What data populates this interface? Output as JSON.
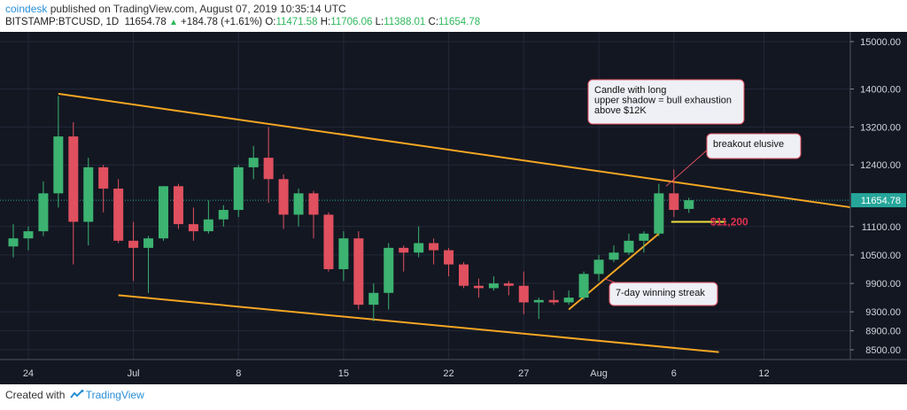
{
  "header": {
    "brand": "coindesk",
    "published": "published on TradingView.com, August 07, 2019 10:35:14 UTC",
    "symbol": "BITSTAMP:BTCUSD, 1D",
    "last": "11654.78",
    "change": "+184.78 (+1.61%)",
    "o_label": "O:",
    "o_value": "11471.58",
    "h_label": "H:",
    "h_value": "11706.06",
    "l_label": "L:",
    "l_value": "11388.01",
    "c_label": "C:",
    "c_value": "11654.78"
  },
  "footer": {
    "created_with": "Created with",
    "tradingview": "TradingView"
  },
  "colors": {
    "background": "#131722",
    "up": "#3cb371",
    "down": "#e0505e",
    "trendline": "#f5a623",
    "yellow_level": "#f0e040",
    "price_tag": "#26a69a"
  },
  "chart_data": {
    "type": "candlestick",
    "title": "BITSTAMP:BTCUSD, 1D",
    "ylim": [
      8350,
      15300
    ],
    "y_ticks": [
      "15000.00",
      "14000.00",
      "13200.00",
      "12400.00",
      "11654.78",
      "11100.00",
      "10500.00",
      "9900.00",
      "9300.00",
      "8900.00",
      "8500.00"
    ],
    "x_tick_labels": [
      {
        "label": "24",
        "date": "2019-06-24"
      },
      {
        "label": "Jul",
        "date": "2019-07-01"
      },
      {
        "label": "8",
        "date": "2019-07-08"
      },
      {
        "label": "15",
        "date": "2019-07-15"
      },
      {
        "label": "22",
        "date": "2019-07-22"
      },
      {
        "label": "27",
        "date": "2019-07-27"
      },
      {
        "label": "Aug",
        "date": "2019-08-01"
      },
      {
        "label": "6",
        "date": "2019-08-06"
      },
      {
        "label": "12",
        "date": "2019-08-12"
      }
    ],
    "candles": [
      {
        "date": "2019-06-23",
        "o": 10680,
        "h": 11150,
        "l": 10450,
        "c": 10850
      },
      {
        "date": "2019-06-24",
        "o": 10850,
        "h": 11100,
        "l": 10600,
        "c": 11000
      },
      {
        "date": "2019-06-25",
        "o": 11000,
        "h": 12050,
        "l": 10900,
        "c": 11800
      },
      {
        "date": "2019-06-26",
        "o": 11800,
        "h": 13850,
        "l": 11500,
        "c": 13000
      },
      {
        "date": "2019-06-27",
        "o": 13000,
        "h": 13300,
        "l": 10300,
        "c": 11200
      },
      {
        "date": "2019-06-28",
        "o": 11200,
        "h": 12550,
        "l": 10700,
        "c": 12350
      },
      {
        "date": "2019-06-29",
        "o": 12350,
        "h": 12400,
        "l": 11400,
        "c": 11900
      },
      {
        "date": "2019-06-30",
        "o": 11900,
        "h": 12100,
        "l": 10750,
        "c": 10800
      },
      {
        "date": "2019-07-01",
        "o": 10800,
        "h": 11200,
        "l": 9950,
        "c": 10650
      },
      {
        "date": "2019-07-02",
        "o": 10650,
        "h": 10900,
        "l": 9700,
        "c": 10850
      },
      {
        "date": "2019-07-03",
        "o": 10850,
        "h": 11950,
        "l": 10800,
        "c": 11950
      },
      {
        "date": "2019-07-04",
        "o": 11950,
        "h": 12000,
        "l": 11050,
        "c": 11150
      },
      {
        "date": "2019-07-05",
        "o": 11150,
        "h": 11500,
        "l": 10800,
        "c": 11000
      },
      {
        "date": "2019-07-06",
        "o": 11000,
        "h": 11650,
        "l": 10950,
        "c": 11250
      },
      {
        "date": "2019-07-07",
        "o": 11250,
        "h": 11550,
        "l": 11100,
        "c": 11450
      },
      {
        "date": "2019-07-08",
        "o": 11450,
        "h": 12400,
        "l": 11300,
        "c": 12350
      },
      {
        "date": "2019-07-09",
        "o": 12350,
        "h": 12800,
        "l": 12100,
        "c": 12550
      },
      {
        "date": "2019-07-10",
        "o": 12550,
        "h": 13200,
        "l": 11600,
        "c": 12100
      },
      {
        "date": "2019-07-11",
        "o": 12100,
        "h": 12200,
        "l": 11050,
        "c": 11350
      },
      {
        "date": "2019-07-12",
        "o": 11350,
        "h": 11900,
        "l": 11100,
        "c": 11800
      },
      {
        "date": "2019-07-13",
        "o": 11800,
        "h": 11850,
        "l": 10850,
        "c": 11350
      },
      {
        "date": "2019-07-14",
        "o": 11350,
        "h": 11400,
        "l": 10150,
        "c": 10200
      },
      {
        "date": "2019-07-15",
        "o": 10200,
        "h": 11000,
        "l": 9950,
        "c": 10850
      },
      {
        "date": "2019-07-16",
        "o": 10850,
        "h": 11000,
        "l": 9350,
        "c": 9450
      },
      {
        "date": "2019-07-17",
        "o": 9450,
        "h": 9900,
        "l": 9100,
        "c": 9700
      },
      {
        "date": "2019-07-18",
        "o": 9700,
        "h": 10750,
        "l": 9350,
        "c": 10650
      },
      {
        "date": "2019-07-19",
        "o": 10650,
        "h": 10700,
        "l": 10150,
        "c": 10550
      },
      {
        "date": "2019-07-20",
        "o": 10550,
        "h": 11100,
        "l": 10450,
        "c": 10750
      },
      {
        "date": "2019-07-21",
        "o": 10750,
        "h": 10850,
        "l": 10300,
        "c": 10600
      },
      {
        "date": "2019-07-22",
        "o": 10600,
        "h": 10650,
        "l": 10050,
        "c": 10300
      },
      {
        "date": "2019-07-23",
        "o": 10300,
        "h": 10350,
        "l": 9800,
        "c": 9850
      },
      {
        "date": "2019-07-24",
        "o": 9850,
        "h": 10000,
        "l": 9600,
        "c": 9800
      },
      {
        "date": "2019-07-25",
        "o": 9800,
        "h": 10050,
        "l": 9750,
        "c": 9900
      },
      {
        "date": "2019-07-26",
        "o": 9900,
        "h": 9950,
        "l": 9650,
        "c": 9850
      },
      {
        "date": "2019-07-27",
        "o": 9850,
        "h": 10150,
        "l": 9250,
        "c": 9500
      },
      {
        "date": "2019-07-28",
        "o": 9500,
        "h": 9600,
        "l": 9150,
        "c": 9550
      },
      {
        "date": "2019-07-29",
        "o": 9550,
        "h": 9750,
        "l": 9450,
        "c": 9500
      },
      {
        "date": "2019-07-30",
        "o": 9500,
        "h": 9750,
        "l": 9450,
        "c": 9600
      },
      {
        "date": "2019-07-31",
        "o": 9600,
        "h": 10150,
        "l": 9550,
        "c": 10100
      },
      {
        "date": "2019-08-01",
        "o": 10100,
        "h": 10500,
        "l": 9950,
        "c": 10400
      },
      {
        "date": "2019-08-02",
        "o": 10400,
        "h": 10700,
        "l": 10350,
        "c": 10550
      },
      {
        "date": "2019-08-03",
        "o": 10550,
        "h": 10950,
        "l": 10500,
        "c": 10800
      },
      {
        "date": "2019-08-04",
        "o": 10800,
        "h": 11000,
        "l": 10550,
        "c": 10950
      },
      {
        "date": "2019-08-05",
        "o": 10950,
        "h": 12000,
        "l": 10900,
        "c": 11800
      },
      {
        "date": "2019-08-06",
        "o": 11800,
        "h": 12300,
        "l": 11300,
        "c": 11450
      },
      {
        "date": "2019-08-07",
        "o": 11471.58,
        "h": 11706.06,
        "l": 11388.01,
        "c": 11654.78
      }
    ],
    "upper_trendline": [
      {
        "date": "2019-06-26",
        "price": 13900
      },
      {
        "date": "2019-08-19",
        "price": 11450
      }
    ],
    "lower_trendline": [
      {
        "date": "2019-06-30",
        "price": 9650
      },
      {
        "date": "2019-08-09",
        "price": 8450
      }
    ],
    "streak_line": [
      {
        "date": "2019-07-30",
        "price": 9350
      },
      {
        "date": "2019-08-05",
        "price": 10950
      }
    ],
    "support_line": {
      "price": 11200,
      "from": "2019-08-06",
      "to": "2019-08-09"
    },
    "last_price": 11654.78,
    "annotations": [
      {
        "text": "Candle with long upper shadow = bull exhaustion above $12K",
        "lines": [
          "Candle with long",
          "upper shadow = bull exhaustion",
          "above $12K"
        ]
      },
      {
        "text": "breakout elusive",
        "lines": [
          "breakout elusive"
        ]
      },
      {
        "text": "7-day winning streak",
        "lines": [
          "7-day winning streak"
        ]
      },
      {
        "text": "$11,200",
        "lines": [
          "$11,200"
        ]
      }
    ]
  }
}
